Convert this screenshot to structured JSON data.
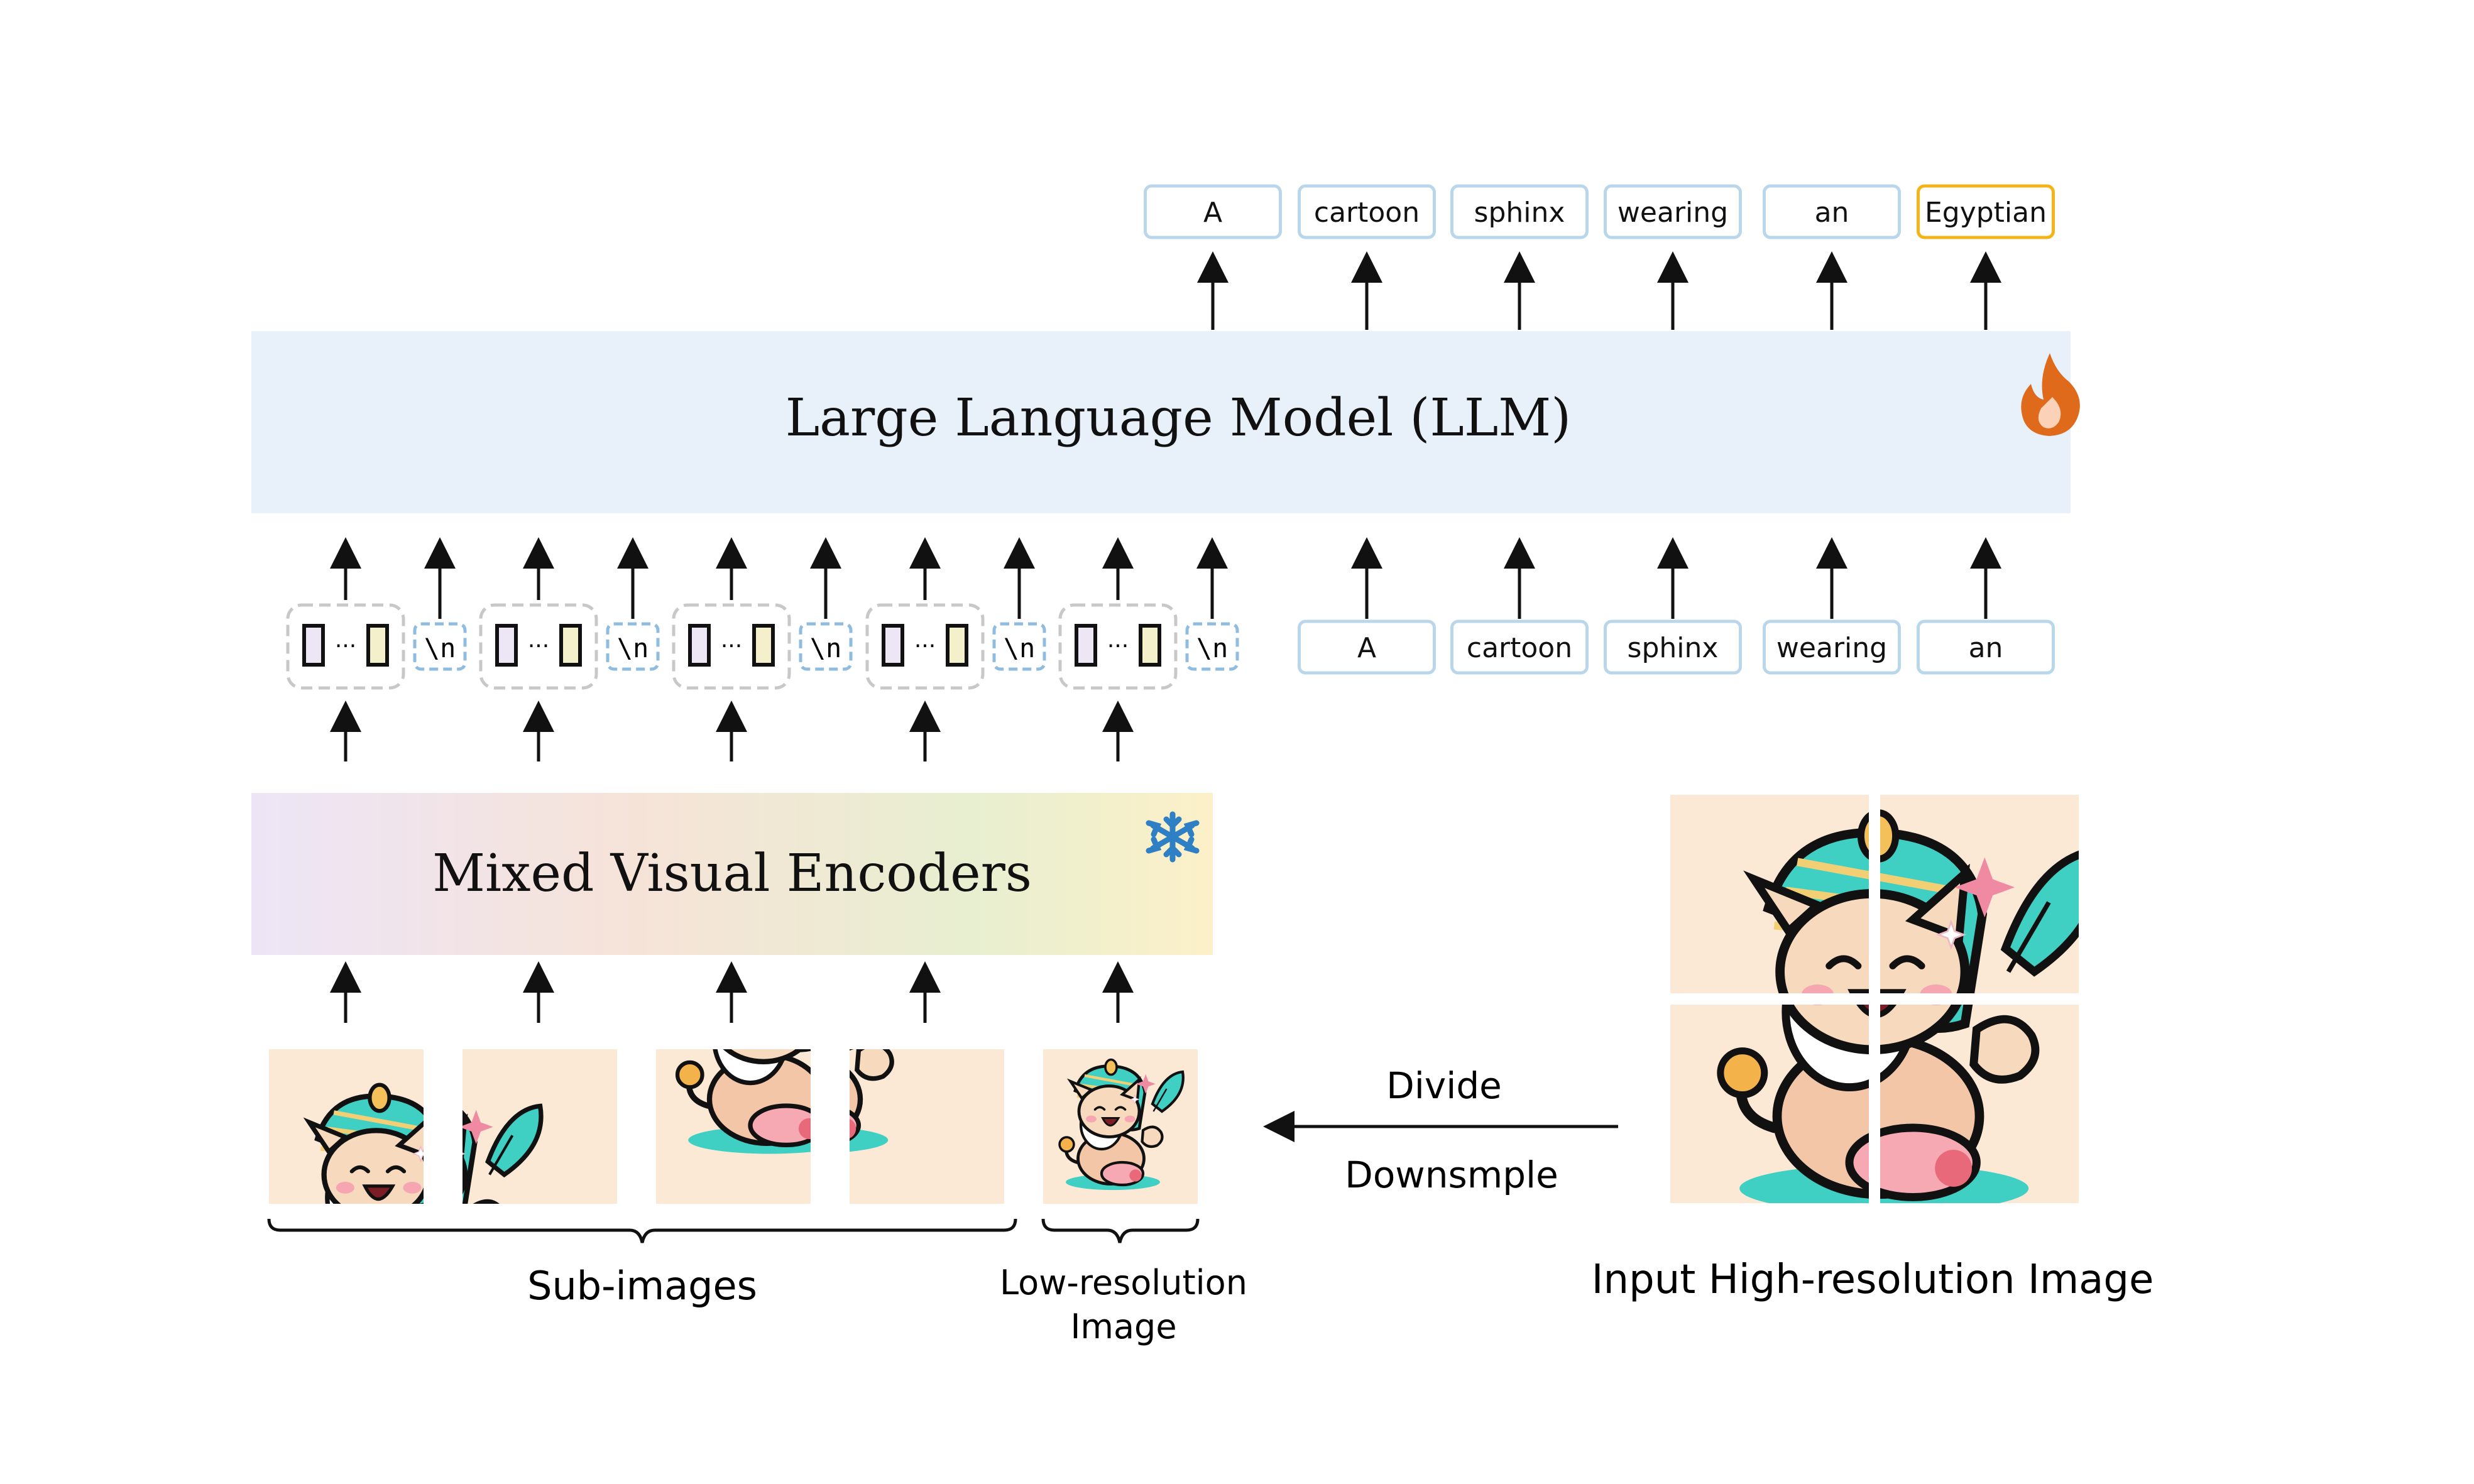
{
  "llm": {
    "title": "Large Language Model (LLM)",
    "state_icon": "fire-icon"
  },
  "encoder": {
    "title": "Mixed Visual Encoders",
    "state_icon": "snowflake-icon"
  },
  "output_tokens": [
    "A",
    "cartoon",
    "sphinx",
    "wearing",
    "an",
    "Egyptian"
  ],
  "input_text_tokens": [
    "A",
    "cartoon",
    "sphinx",
    "wearing",
    "an"
  ],
  "visual_tokens": {
    "ellipsis": "···",
    "newline": "\\n",
    "groups": 5
  },
  "labels": {
    "sub_images": "Sub-images",
    "low_res_line1": "Low-resolution",
    "low_res_line2": "Image",
    "input_image": "Input High-resolution Image",
    "divide": "Divide",
    "downsample": "Downsmple"
  },
  "colors": {
    "token_border": "#b9d6ea",
    "highlight_border": "#f2b418",
    "llm_fill": "#e8f1f9",
    "encoder_gradient": [
      "#ece5f6",
      "#f6e4d8",
      "#e9eed0",
      "#fbf0c8"
    ],
    "image_bg": "#fbe9d6"
  }
}
